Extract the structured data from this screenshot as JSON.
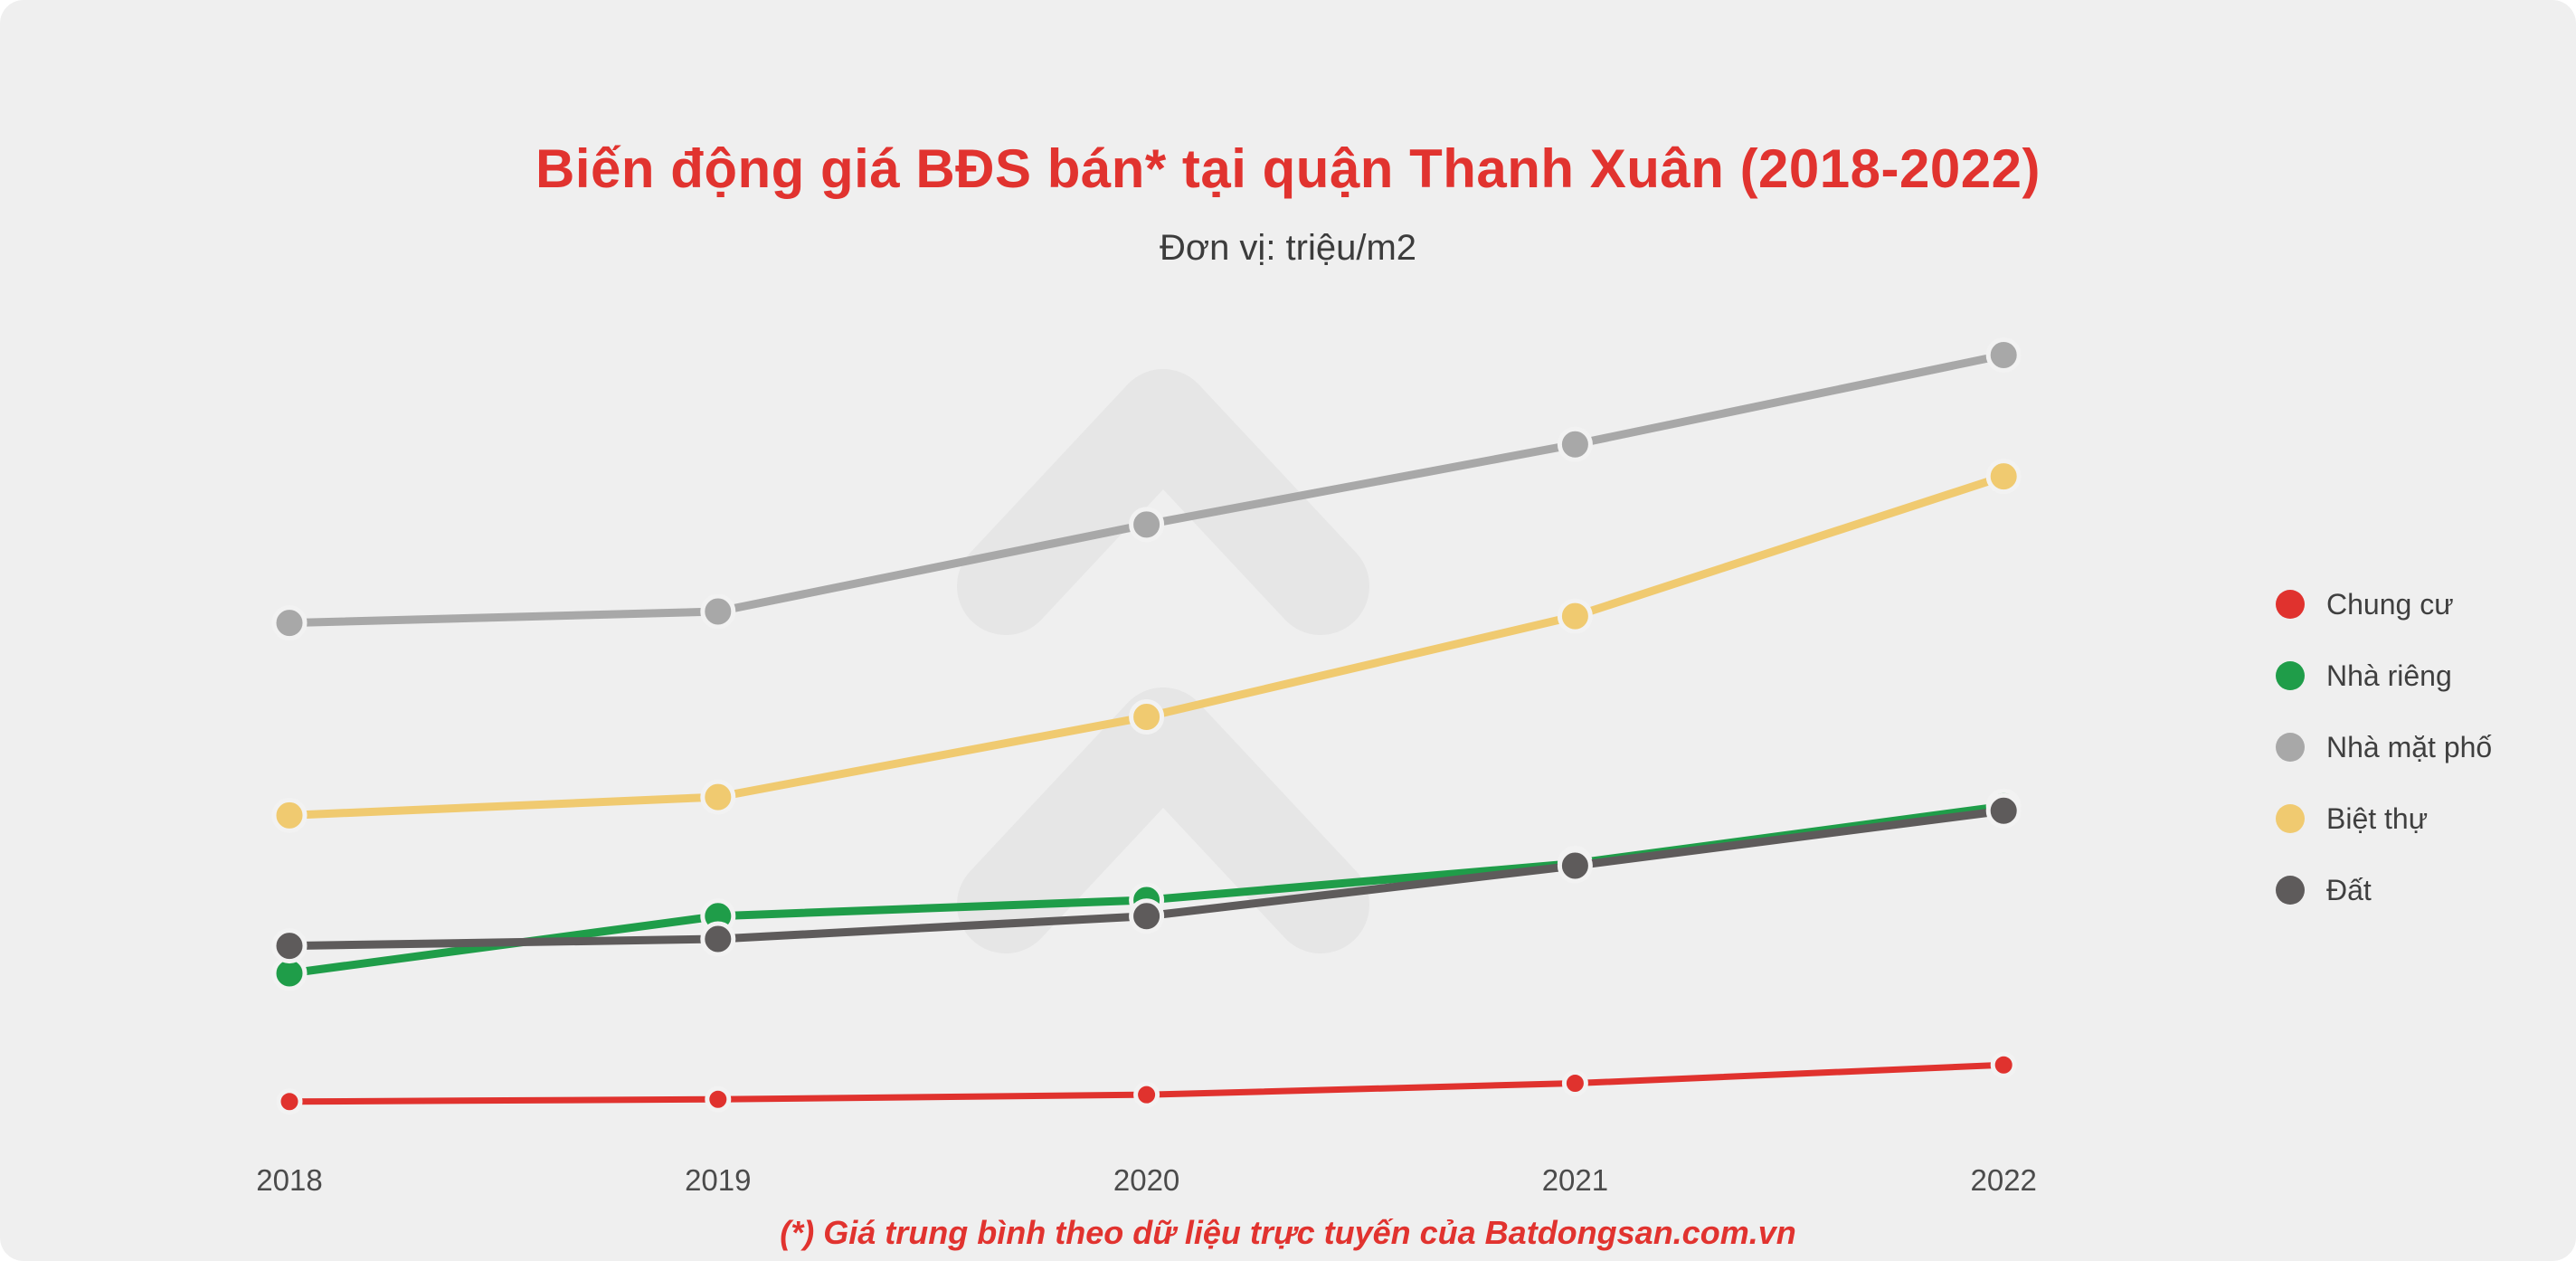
{
  "page": {
    "title": "Biến động giá BĐS bán* tại quận Thanh Xuân (2018-2022)",
    "subtitle": "Đơn vị: triệu/m2",
    "footnote": "(*) Giá trung bình theo dữ liệu trực tuyến của Batdongsan.com.vn"
  },
  "colors": {
    "background": "#efefef",
    "title": "#e1332f",
    "subtitle_text": "#3c3c3c",
    "axis_text": "#4b4b4b",
    "footnote": "#e1332f",
    "watermark": "#e6e6e6",
    "marker_halo": "#f2f2f2"
  },
  "chart_data": {
    "type": "line",
    "title": "Biến động giá BĐS bán* tại quận Thanh Xuân (2018-2022)",
    "unit": "triệu/m2",
    "x": [
      "2018",
      "2019",
      "2020",
      "2021",
      "2022"
    ],
    "ylim": [
      0,
      380
    ],
    "grid": false,
    "legend_position": "right",
    "series": [
      {
        "name": "Chung cư",
        "color": "#e0322e",
        "values": [
          23,
          24,
          26,
          31,
          39
        ]
      },
      {
        "name": "Nhà riêng",
        "color": "#1f9d49",
        "values": [
          79,
          104,
          111,
          127,
          152
        ]
      },
      {
        "name": "Nhà mặt phố",
        "color": "#a8a8a8",
        "values": [
          232,
          237,
          275,
          310,
          349
        ]
      },
      {
        "name": "Biệt thự",
        "color": "#f0ca70",
        "values": [
          148,
          156,
          191,
          235,
          296
        ]
      },
      {
        "name": "Đất",
        "color": "#5e5b5b",
        "values": [
          91,
          94,
          104,
          126,
          150
        ]
      }
    ]
  }
}
